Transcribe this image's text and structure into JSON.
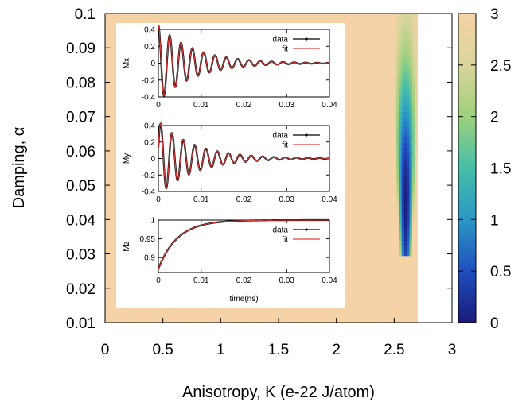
{
  "chart_data": [
    {
      "type": "heatmap",
      "xlabel": "Anisotropy, K (e-22 J/atom)",
      "ylabel": "Damping, α",
      "xlim": [
        0,
        3
      ],
      "ylim": [
        0.01,
        0.1
      ],
      "x_ticks": [
        "0",
        "0.5",
        "1",
        "1.5",
        "2",
        "2.5",
        "3"
      ],
      "y_ticks": [
        "0.01",
        "0.02",
        "0.03",
        "0.04",
        "0.05",
        "0.06",
        "0.07",
        "0.08",
        "0.09",
        "0.1"
      ],
      "colorbar": {
        "range": [
          0,
          3
        ],
        "ticks": [
          "0",
          "0.5",
          "1",
          "1.5",
          "2",
          "2.5",
          "3"
        ],
        "colors": [
          "#1a1a7a",
          "#1f4fbf",
          "#2b97c4",
          "#46bfa8",
          "#9fd07c",
          "#d9d49a",
          "#f5d3a6"
        ]
      },
      "background_value": 3,
      "data_extent_x": [
        0,
        2.7
      ],
      "valley": {
        "x_center": 2.6,
        "x_halfwidth": 0.1,
        "y_range": [
          0.03,
          0.1
        ],
        "min_value": 0.05,
        "min_at_y": 0.045
      },
      "grid": false
    },
    {
      "type": "line",
      "ylabel": "Mx",
      "xlim": [
        0,
        0.04
      ],
      "ylim": [
        -0.4,
        0.4
      ],
      "x_ticks": [
        "0",
        "0.01",
        "0.02",
        "0.03",
        "0.04"
      ],
      "y_ticks": [
        "0.4",
        "0.2",
        "0",
        "-0.2",
        "-0.4"
      ],
      "legend": "top-right",
      "series": [
        {
          "name": "data",
          "color": "#000000",
          "style": "line+points"
        },
        {
          "name": "fit",
          "color": "#e04040",
          "style": "line"
        }
      ],
      "model": {
        "amplitude": 0.45,
        "period_ns": 0.00265,
        "decay_ns": 0.0085,
        "phase": "cos"
      }
    },
    {
      "type": "line",
      "ylabel": "My",
      "xlim": [
        0,
        0.04
      ],
      "ylim": [
        -0.4,
        0.4
      ],
      "x_ticks": [
        "0",
        "0.01",
        "0.02",
        "0.03",
        "0.04"
      ],
      "y_ticks": [
        "0.4",
        "0.2",
        "0",
        "-0.2",
        "-0.4"
      ],
      "legend": "top-right",
      "series": [
        {
          "name": "data",
          "color": "#000000",
          "style": "line+points"
        },
        {
          "name": "fit",
          "color": "#e04040",
          "style": "line"
        }
      ],
      "model": {
        "amplitude": 0.45,
        "period_ns": 0.00265,
        "decay_ns": 0.0085,
        "phase": "sin"
      }
    },
    {
      "type": "line",
      "ylabel": "Mz",
      "xlabel": "time(ns)",
      "xlim": [
        0,
        0.04
      ],
      "ylim": [
        0.86,
        1.0
      ],
      "x_ticks": [
        "0",
        "0.01",
        "0.02",
        "0.03",
        "0.04"
      ],
      "y_ticks": [
        "1",
        "0.95",
        "0.9"
      ],
      "legend": "top-right",
      "series": [
        {
          "name": "data",
          "color": "#000000",
          "style": "line+points"
        },
        {
          "name": "fit",
          "color": "#e04040",
          "style": "line"
        }
      ],
      "model": {
        "start": 0.87,
        "end": 1.0,
        "decay_ns": 0.0045
      }
    }
  ]
}
